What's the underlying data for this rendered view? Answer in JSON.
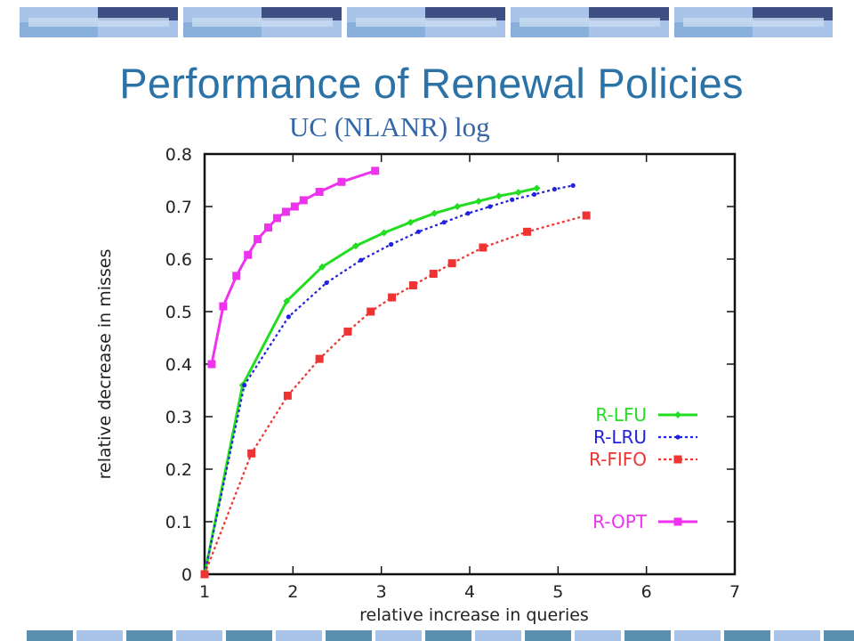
{
  "slide": {
    "title": "Performance of Renewal Policies",
    "subtitle": "UC (NLANR) log",
    "band_colors": {
      "dark": "#3d4f82",
      "light": "#a9c4e8",
      "mid": "#6f9fcf",
      "teal": "#5b8fb0"
    }
  },
  "chart_data": {
    "type": "line",
    "title": "",
    "xlabel": "relative increase in queries",
    "ylabel": "relative decrease in misses",
    "xlim": [
      1,
      7
    ],
    "ylim": [
      0,
      0.8
    ],
    "xticks": [
      1,
      2,
      3,
      4,
      5,
      6,
      7
    ],
    "yticks": [
      0,
      0.1,
      0.2,
      0.3,
      0.4,
      0.5,
      0.6,
      0.7,
      0.8
    ],
    "xtick_labels": [
      "1",
      "2",
      "3",
      "4",
      "5",
      "6",
      "7"
    ],
    "ytick_labels": [
      "0",
      "0.1",
      "0.2",
      "0.3",
      "0.4",
      "0.5",
      "0.6",
      "0.7",
      "0.8"
    ],
    "grid": false,
    "legend_position": "lower-right",
    "series": [
      {
        "name": "R-LFU",
        "color": "#22dd22",
        "style": "solid",
        "marker": "diamond",
        "x": [
          1.0,
          1.43,
          1.93,
          2.33,
          2.71,
          3.03,
          3.33,
          3.6,
          3.86,
          4.1,
          4.33,
          4.55,
          4.76
        ],
        "y": [
          0.0,
          0.36,
          0.52,
          0.585,
          0.625,
          0.65,
          0.67,
          0.687,
          0.7,
          0.71,
          0.72,
          0.727,
          0.735
        ]
      },
      {
        "name": "R-LRU",
        "color": "#2222dd",
        "style": "dotted",
        "marker": "dot",
        "x": [
          1.0,
          1.45,
          1.95,
          2.38,
          2.77,
          3.11,
          3.42,
          3.71,
          3.98,
          4.23,
          4.48,
          4.73,
          4.96,
          5.17
        ],
        "y": [
          0.0,
          0.36,
          0.49,
          0.555,
          0.598,
          0.628,
          0.652,
          0.67,
          0.687,
          0.7,
          0.713,
          0.723,
          0.733,
          0.74
        ]
      },
      {
        "name": "R-FIFO",
        "color": "#ee3333",
        "style": "dotted",
        "marker": "square",
        "x": [
          1.0,
          1.53,
          1.94,
          2.3,
          2.62,
          2.88,
          3.12,
          3.36,
          3.59,
          3.8,
          4.15,
          4.65,
          5.32
        ],
        "y": [
          0.0,
          0.23,
          0.34,
          0.41,
          0.462,
          0.5,
          0.527,
          0.55,
          0.572,
          0.592,
          0.622,
          0.652,
          0.683
        ]
      },
      {
        "name": "R-OPT",
        "color": "#ee33ee",
        "style": "solid",
        "marker": "square",
        "x": [
          1.08,
          1.21,
          1.36,
          1.49,
          1.6,
          1.72,
          1.82,
          1.92,
          2.02,
          2.12,
          2.3,
          2.55,
          2.93
        ],
        "y": [
          0.4,
          0.51,
          0.568,
          0.608,
          0.638,
          0.66,
          0.678,
          0.69,
          0.7,
          0.712,
          0.728,
          0.747,
          0.768
        ]
      }
    ]
  }
}
